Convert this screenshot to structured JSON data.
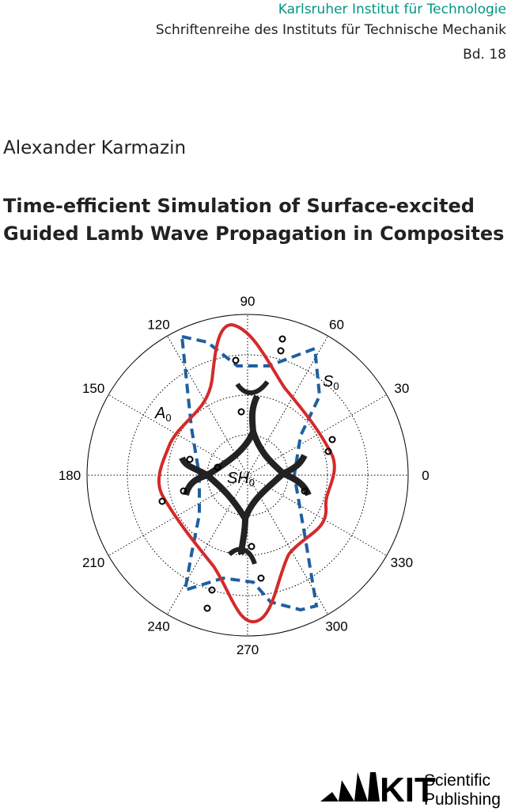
{
  "series": {
    "institute": "Karlsruher Institut für Technologie",
    "name": "Schriftenreihe des Instituts für Technische Mechanik",
    "volume": "Bd. 18"
  },
  "author": "Alexander Karmazin",
  "title": [
    "Time-efficient Simulation of Surface-excited",
    "Guided Lamb Wave Propagation in Composites"
  ],
  "figure": {
    "angle_labels": [
      0,
      30,
      60,
      90,
      120,
      150,
      180,
      210,
      240,
      270,
      300,
      330
    ],
    "curve_labels": {
      "a0": {
        "base": "A",
        "sub": "0"
      },
      "s0": {
        "base": "S",
        "sub": "0"
      },
      "sh0": {
        "base": "SH",
        "sub": "0"
      }
    }
  },
  "publisher": {
    "logo": "KIT",
    "line1": "Scientific",
    "line2": "Publishing"
  }
}
